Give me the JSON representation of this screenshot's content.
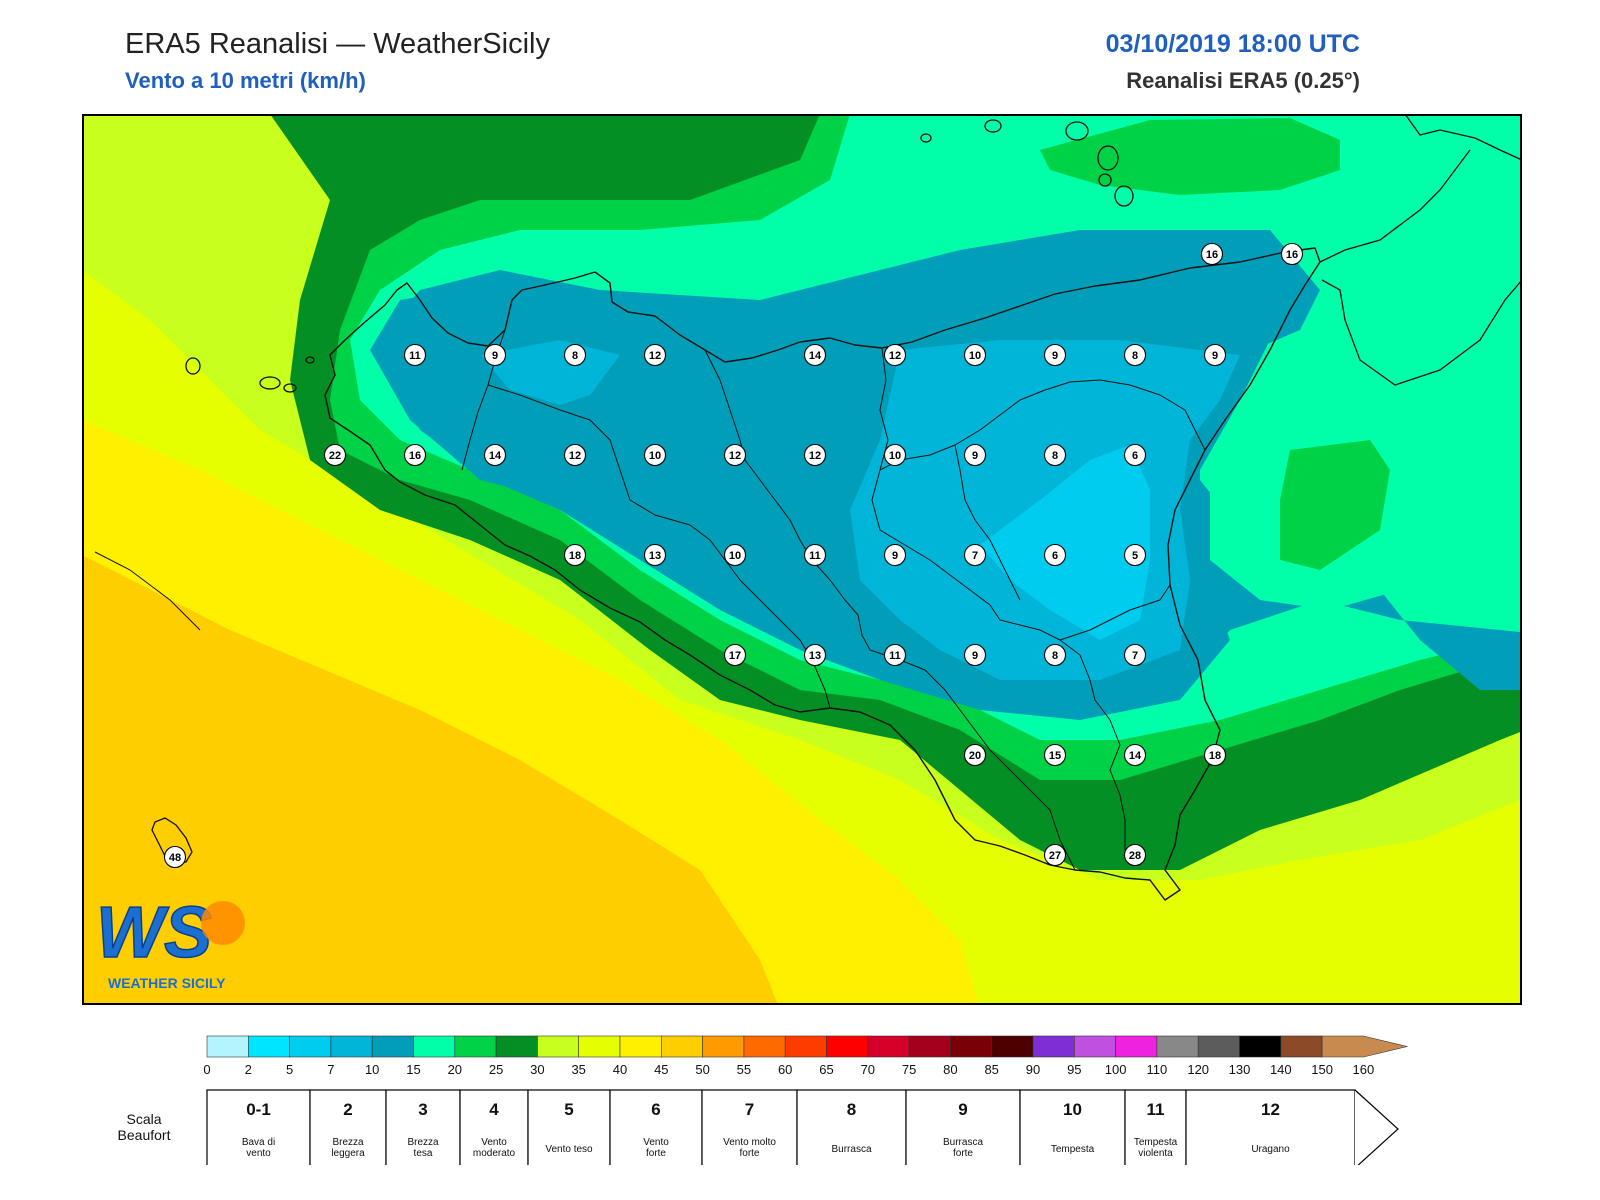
{
  "header": {
    "title": "ERA5 Reanalisi — WeatherSicily",
    "subtitle": "Vento a 10 metri (km/h)",
    "datetime": "03/10/2019 18:00 UTC",
    "source": "Reanalisi ERA5 (0.25°)"
  },
  "logo": {
    "letters": "WS",
    "name": "WEATHER SICILY"
  },
  "stations_row_y": [
    355,
    455,
    555,
    655,
    755,
    855
  ],
  "stations": [
    {
      "row": 0,
      "col": 4,
      "v": "11"
    },
    {
      "row": 0,
      "col": 5,
      "v": "9"
    },
    {
      "row": 0,
      "col": 6,
      "v": "8"
    },
    {
      "row": 0,
      "col": 7,
      "v": "12"
    },
    {
      "row": 0,
      "col": 9,
      "v": "14"
    },
    {
      "row": 0,
      "col": 10,
      "v": "12"
    },
    {
      "row": 0,
      "col": 11,
      "v": "10"
    },
    {
      "row": 0,
      "col": 12,
      "v": "9"
    },
    {
      "row": 0,
      "col": 13,
      "v": "8"
    },
    {
      "row": 0,
      "col": 14,
      "v": "9"
    },
    {
      "row": 1,
      "col": 3,
      "v": "22"
    },
    {
      "row": 1,
      "col": 4,
      "v": "16"
    },
    {
      "row": 1,
      "col": 5,
      "v": "14"
    },
    {
      "row": 1,
      "col": 6,
      "v": "12"
    },
    {
      "row": 1,
      "col": 7,
      "v": "10"
    },
    {
      "row": 1,
      "col": 8,
      "v": "12"
    },
    {
      "row": 1,
      "col": 9,
      "v": "12"
    },
    {
      "row": 1,
      "col": 10,
      "v": "10"
    },
    {
      "row": 1,
      "col": 11,
      "v": "9"
    },
    {
      "row": 1,
      "col": 12,
      "v": "8"
    },
    {
      "row": 1,
      "col": 13,
      "v": "6"
    },
    {
      "row": 2,
      "col": 6,
      "v": "18"
    },
    {
      "row": 2,
      "col": 7,
      "v": "13"
    },
    {
      "row": 2,
      "col": 8,
      "v": "10"
    },
    {
      "row": 2,
      "col": 9,
      "v": "11"
    },
    {
      "row": 2,
      "col": 10,
      "v": "9"
    },
    {
      "row": 2,
      "col": 11,
      "v": "7"
    },
    {
      "row": 2,
      "col": 12,
      "v": "6"
    },
    {
      "row": 2,
      "col": 13,
      "v": "5"
    },
    {
      "row": 3,
      "col": 8,
      "v": "17"
    },
    {
      "row": 3,
      "col": 9,
      "v": "13"
    },
    {
      "row": 3,
      "col": 10,
      "v": "11"
    },
    {
      "row": 3,
      "col": 11,
      "v": "9"
    },
    {
      "row": 3,
      "col": 12,
      "v": "8"
    },
    {
      "row": 3,
      "col": 13,
      "v": "7"
    },
    {
      "row": 4,
      "col": 11,
      "v": "20"
    },
    {
      "row": 4,
      "col": 12,
      "v": "15"
    },
    {
      "row": 4,
      "col": 13,
      "v": "14"
    },
    {
      "row": 4,
      "col": 14,
      "v": "18"
    },
    {
      "row": 5,
      "col": 12,
      "v": "27"
    },
    {
      "row": 5,
      "col": 13,
      "v": "28"
    }
  ],
  "extra_stations": [
    {
      "x": 1212,
      "y": 254,
      "v": "16"
    },
    {
      "x": 1292,
      "y": 254,
      "v": "16"
    },
    {
      "x": 175,
      "y": 857,
      "v": "48"
    }
  ],
  "colorbar": {
    "colors": [
      "#b3f4ff",
      "#00e5ff",
      "#00ccf0",
      "#00b5d8",
      "#009eb8",
      "#00ffa8",
      "#00d248",
      "#048f24",
      "#c8ff1c",
      "#e6ff00",
      "#fff000",
      "#ffce00",
      "#ff9a00",
      "#ff6a00",
      "#ff3c00",
      "#ff0000",
      "#d4002a",
      "#a4001c",
      "#780006",
      "#4d0000",
      "#7e2ed4",
      "#c050e0",
      "#ee22e0",
      "#888888",
      "#5c5c5c",
      "#000000",
      "#8c4a28",
      "#c98a50"
    ],
    "ticks": [
      "0",
      "2",
      "5",
      "7",
      "10",
      "15",
      "20",
      "25",
      "30",
      "35",
      "40",
      "45",
      "50",
      "55",
      "60",
      "65",
      "70",
      "75",
      "80",
      "85",
      "90",
      "95",
      "100",
      "110",
      "120",
      "130",
      "140",
      "150",
      "160"
    ]
  },
  "beaufort": {
    "label_line1": "Scala",
    "label_line2": "Beaufort",
    "cells": [
      {
        "num": "0-1",
        "desc": [
          "Bava di",
          "vento"
        ]
      },
      {
        "num": "2",
        "desc": [
          "Brezza",
          "leggera"
        ]
      },
      {
        "num": "3",
        "desc": [
          "Brezza",
          "tesa"
        ]
      },
      {
        "num": "4",
        "desc": [
          "Vento",
          "moderato"
        ]
      },
      {
        "num": "5",
        "desc": [
          "Vento teso"
        ]
      },
      {
        "num": "6",
        "desc": [
          "Vento",
          "forte"
        ]
      },
      {
        "num": "7",
        "desc": [
          "Vento molto",
          "forte"
        ]
      },
      {
        "num": "8",
        "desc": [
          "Burrasca"
        ]
      },
      {
        "num": "9",
        "desc": [
          "Burrasca",
          "forte"
        ]
      },
      {
        "num": "10",
        "desc": [
          "Tempesta"
        ]
      },
      {
        "num": "11",
        "desc": [
          "Tempesta",
          "violenta"
        ]
      },
      {
        "num": "12",
        "desc": [
          "Uragano"
        ]
      }
    ]
  }
}
